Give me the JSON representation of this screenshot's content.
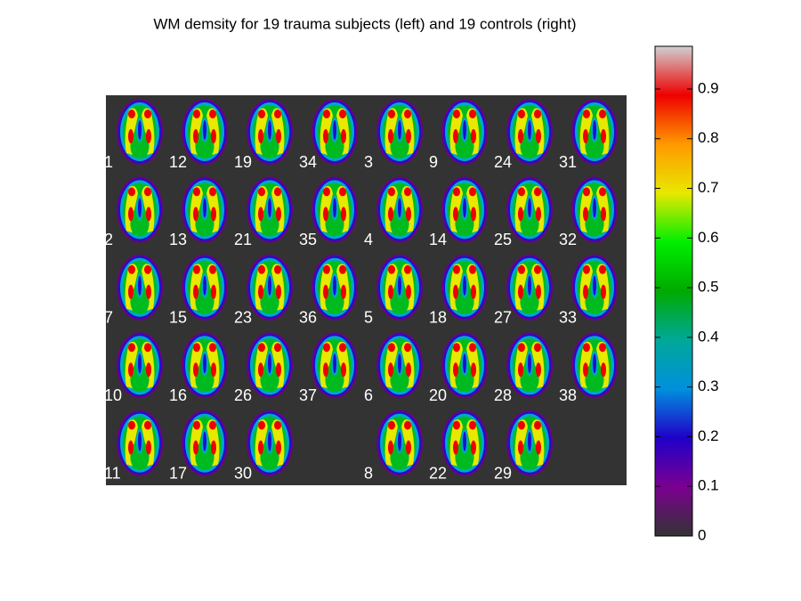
{
  "title": "WM demsity for 19 trauma subjects (left) and 19 controls (right)",
  "montage": {
    "background": "#333333",
    "rows": [
      [
        "1",
        "12",
        "19",
        "34",
        "3",
        "9",
        "24",
        "31"
      ],
      [
        "2",
        "13",
        "21",
        "35",
        "4",
        "14",
        "25",
        "32"
      ],
      [
        "7",
        "15",
        "23",
        "36",
        "5",
        "18",
        "27",
        "33"
      ],
      [
        "10",
        "16",
        "26",
        "37",
        "6",
        "20",
        "28",
        "38"
      ],
      [
        "11",
        "17",
        "30",
        null,
        "8",
        "22",
        "29",
        null
      ]
    ]
  },
  "colorbar": {
    "lim": [
      0,
      0.986
    ],
    "ticks": [
      0,
      0.1,
      0.2,
      0.3,
      0.4,
      0.5,
      0.6,
      0.7,
      0.8,
      0.9
    ],
    "colormap": [
      "#333333",
      "#7a0090",
      "#2000c8",
      "#0090dd",
      "#00a898",
      "#00aa00",
      "#00ee00",
      "#e8e800",
      "#ff9900",
      "#ee0000",
      "#d0d0d0"
    ]
  }
}
